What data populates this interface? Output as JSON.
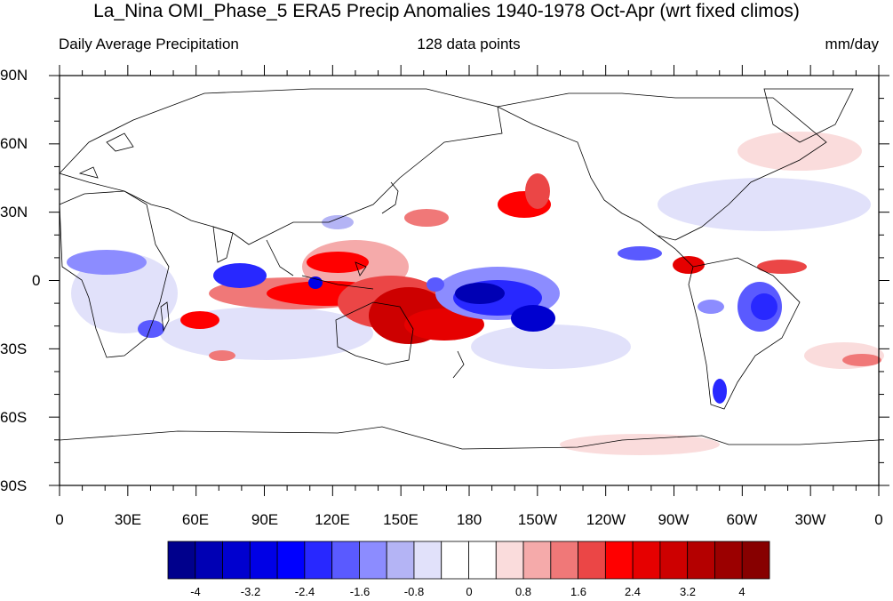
{
  "title": "La_Nina OMI_Phase_5 ERA5 Precip Anomalies 1940-1978 Oct-Apr (wrt fixed climos)",
  "subtitle_left": "Daily Average Precipitation",
  "subtitle_center": "128 data points",
  "subtitle_right": "mm/day",
  "lat_labels": [
    "90N",
    "60N",
    "30N",
    "0",
    "30S",
    "60S",
    "90S"
  ],
  "lon_labels": [
    "0",
    "30E",
    "60E",
    "90E",
    "120E",
    "150E",
    "180",
    "150W",
    "120W",
    "90W",
    "60W",
    "30W",
    "0"
  ],
  "colorbar": {
    "tick_labels": [
      "-4",
      "-3.2",
      "-2.4",
      "-1.6",
      "-0.8",
      "0",
      "0.8",
      "1.6",
      "2.4",
      "3.2",
      "4"
    ],
    "colors": [
      "#00008c",
      "#0000b4",
      "#0000cf",
      "#0000e6",
      "#0000ff",
      "#2828ff",
      "#5a5aff",
      "#8c8cff",
      "#b4b4f5",
      "#e1e1fa",
      "#ffffff",
      "#ffffff",
      "#fadcdc",
      "#f5aaaa",
      "#f07878",
      "#eb4646",
      "#ff0000",
      "#e60000",
      "#cd0000",
      "#b40000",
      "#9b0000",
      "#870000"
    ]
  }
}
